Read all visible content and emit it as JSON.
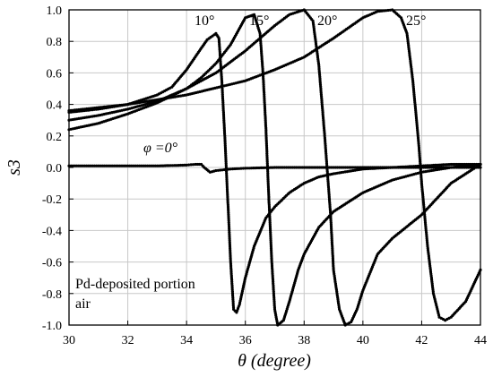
{
  "chart_data": {
    "type": "line",
    "xlabel": "θ (degree)",
    "ylabel": "s3",
    "xlim": [
      30,
      44
    ],
    "ylim": [
      -1.0,
      1.0
    ],
    "x_ticks": [
      "30",
      "32",
      "34",
      "36",
      "38",
      "40",
      "42",
      "44"
    ],
    "y_ticks": [
      "1.0",
      "0.8",
      "0.6",
      "0.4",
      "0.2",
      "0.0",
      "-0.2",
      "-0.4",
      "-0.6",
      "-0.8",
      "-1.0"
    ],
    "grid": true,
    "colors": {
      "series": "#000000",
      "grid": "#c8c8c8",
      "axis": "#000000"
    },
    "annotations": {
      "phi0": "φ =0°",
      "a10": "10°",
      "a15": "15°",
      "a20": "20°",
      "a25": "25°",
      "legend_line1": "Pd-deposited portion",
      "legend_line2": "air"
    },
    "series": [
      {
        "x": [
          30.0,
          31.0,
          32.0,
          33.0,
          34.0,
          34.3,
          34.5,
          34.6,
          34.8,
          35.0,
          35.5,
          36.0,
          37.0,
          38.0,
          40.0,
          42.0,
          44.0
        ],
        "y": [
          0.01,
          0.01,
          0.01,
          0.01,
          0.015,
          0.02,
          0.02,
          0.0,
          -0.03,
          -0.02,
          -0.01,
          -0.005,
          0.0,
          0.0,
          0.0,
          0.0,
          0.0
        ]
      },
      {
        "x": [
          30.0,
          31.0,
          32.0,
          33.0,
          33.5,
          34.0,
          34.4,
          34.7,
          35.0,
          35.1,
          35.2,
          35.3,
          35.4,
          35.5,
          35.6,
          35.7,
          35.8,
          36.0,
          36.3,
          36.7,
          37.0,
          37.5,
          38.0,
          38.5,
          39.0,
          40.0,
          41.0,
          42.0,
          43.0,
          44.0
        ],
        "y": [
          0.35,
          0.37,
          0.4,
          0.46,
          0.51,
          0.62,
          0.73,
          0.81,
          0.85,
          0.82,
          0.55,
          0.2,
          -0.2,
          -0.6,
          -0.9,
          -0.92,
          -0.87,
          -0.7,
          -0.5,
          -0.32,
          -0.25,
          -0.16,
          -0.1,
          -0.06,
          -0.04,
          -0.01,
          0.0,
          0.01,
          0.02,
          0.02
        ]
      },
      {
        "x": [
          30.0,
          31.0,
          32.0,
          33.0,
          34.0,
          34.5,
          35.0,
          35.5,
          36.0,
          36.3,
          36.5,
          36.6,
          36.7,
          36.8,
          36.9,
          37.0,
          37.1,
          37.3,
          37.5,
          37.8,
          38.0,
          38.5,
          39.0,
          40.0,
          41.0,
          42.0,
          43.0,
          44.0
        ],
        "y": [
          0.3,
          0.33,
          0.37,
          0.42,
          0.5,
          0.57,
          0.66,
          0.78,
          0.95,
          0.97,
          0.85,
          0.6,
          0.25,
          -0.2,
          -0.6,
          -0.9,
          -1.0,
          -0.97,
          -0.85,
          -0.65,
          -0.55,
          -0.38,
          -0.28,
          -0.16,
          -0.08,
          -0.03,
          0.0,
          0.02
        ]
      },
      {
        "x": [
          30.0,
          31.0,
          32.0,
          33.0,
          34.0,
          35.0,
          36.0,
          37.0,
          37.5,
          38.0,
          38.3,
          38.5,
          38.7,
          38.9,
          39.0,
          39.2,
          39.4,
          39.6,
          39.8,
          40.0,
          40.5,
          41.0,
          42.0,
          43.0,
          44.0
        ],
        "y": [
          0.24,
          0.28,
          0.34,
          0.41,
          0.5,
          0.6,
          0.74,
          0.9,
          0.97,
          1.0,
          0.93,
          0.65,
          0.2,
          -0.3,
          -0.65,
          -0.9,
          -1.0,
          -0.98,
          -0.9,
          -0.78,
          -0.55,
          -0.45,
          -0.3,
          -0.1,
          0.02
        ]
      },
      {
        "x": [
          30.0,
          32.0,
          34.0,
          36.0,
          37.0,
          38.0,
          39.0,
          40.0,
          40.5,
          41.0,
          41.3,
          41.5,
          41.7,
          41.9,
          42.0,
          42.2,
          42.4,
          42.6,
          42.8,
          43.0,
          43.5,
          44.0
        ],
        "y": [
          0.36,
          0.4,
          0.46,
          0.55,
          0.62,
          0.7,
          0.82,
          0.95,
          0.99,
          1.0,
          0.95,
          0.85,
          0.55,
          0.15,
          -0.1,
          -0.5,
          -0.8,
          -0.95,
          -0.97,
          -0.95,
          -0.85,
          -0.65
        ]
      }
    ]
  }
}
